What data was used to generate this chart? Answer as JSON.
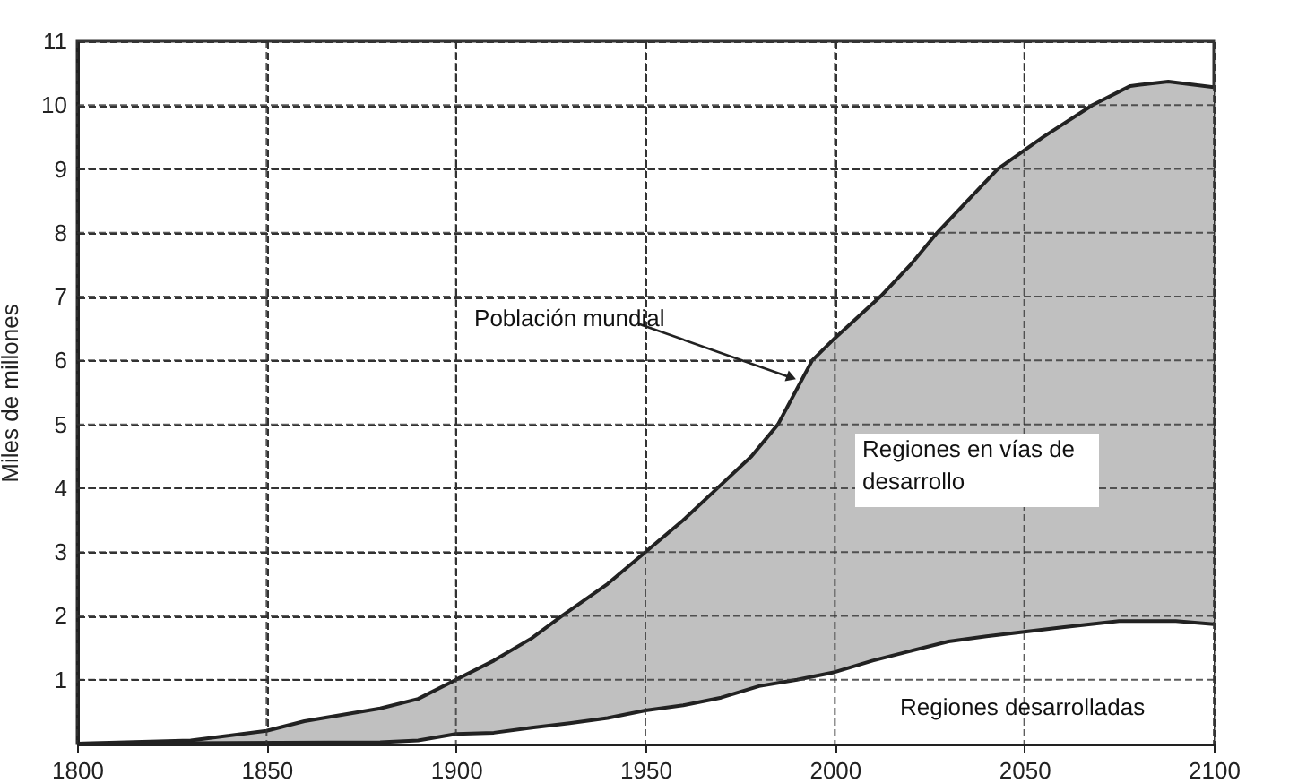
{
  "chart_data": {
    "type": "area",
    "ylabel": "Miles de millones",
    "xlim": [
      1800,
      2100
    ],
    "xticks": [
      1800,
      1850,
      1900,
      1950,
      2000,
      2050,
      2100
    ],
    "ylim": [
      0,
      11
    ],
    "yticks": [
      1,
      2,
      3,
      4,
      5,
      6,
      7,
      8,
      9,
      10,
      11
    ],
    "grid": true,
    "line_style": "solid",
    "series": [
      {
        "color": "#c0c0c0",
        "x": [
          1800,
          1830,
          1850,
          1860,
          1880,
          1890,
          1900,
          1910,
          1920,
          1928,
          1940,
          1950,
          1960,
          1969,
          1978,
          1985,
          1994,
          2000,
          2012,
          2020,
          2027,
          2035,
          2043,
          2055,
          2068,
          2078,
          2088,
          2100
        ],
        "values": [
          0,
          0.05,
          0.2,
          0.35,
          0.55,
          0.7,
          1.0,
          1.3,
          1.65,
          2.0,
          2.5,
          3.0,
          3.5,
          4.0,
          4.5,
          5.0,
          6.0,
          6.35,
          7.0,
          7.5,
          8.0,
          8.5,
          9.0,
          9.5,
          10.0,
          10.3,
          10.37,
          10.28
        ]
      },
      {
        "color": "#ffffff",
        "x": [
          1800,
          1880,
          1890,
          1900,
          1910,
          1920,
          1930,
          1940,
          1950,
          1960,
          1970,
          1980,
          1990,
          2000,
          2010,
          2020,
          2030,
          2040,
          2050,
          2060,
          2075,
          2090,
          2100
        ],
        "values": [
          0,
          0.02,
          0.05,
          0.15,
          0.17,
          0.25,
          0.32,
          0.4,
          0.52,
          0.6,
          0.72,
          0.9,
          1.0,
          1.12,
          1.3,
          1.45,
          1.6,
          1.68,
          1.75,
          1.82,
          1.92,
          1.92,
          1.87
        ]
      }
    ],
    "annotations": [
      {
        "text": "Población mundial",
        "x": 1990,
        "y": 5.7
      },
      "Regiones en vías de desarrollo",
      "Regiones desarrolladas"
    ]
  }
}
